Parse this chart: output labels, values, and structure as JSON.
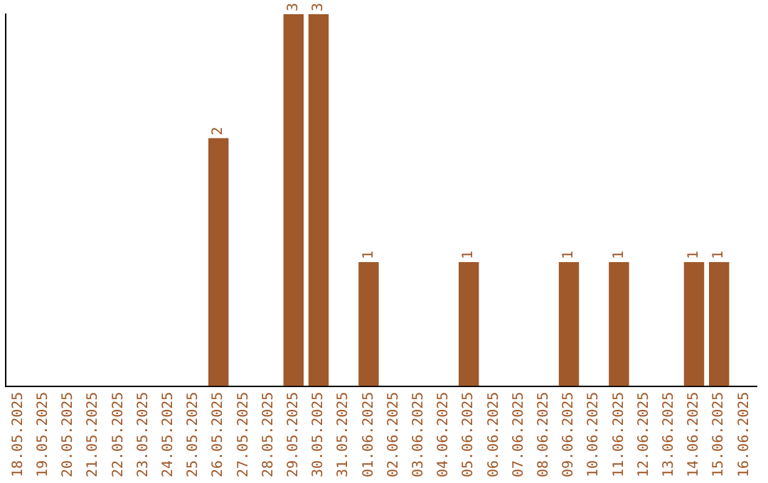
{
  "chart_data": {
    "type": "bar",
    "categories": [
      "18.05.2025",
      "19.05.2025",
      "20.05.2025",
      "21.05.2025",
      "22.05.2025",
      "23.05.2025",
      "24.05.2025",
      "25.05.2025",
      "26.05.2025",
      "27.05.2025",
      "28.05.2025",
      "29.05.2025",
      "30.05.2025",
      "31.05.2025",
      "01.06.2025",
      "02.06.2025",
      "03.06.2025",
      "04.06.2025",
      "05.06.2025",
      "06.06.2025",
      "07.06.2025",
      "08.06.2025",
      "09.06.2025",
      "10.06.2025",
      "11.06.2025",
      "12.06.2025",
      "13.06.2025",
      "14.06.2025",
      "15.06.2025",
      "16.06.2025"
    ],
    "values": [
      0,
      0,
      0,
      0,
      0,
      0,
      0,
      0,
      2,
      0,
      0,
      3,
      3,
      0,
      1,
      0,
      0,
      0,
      1,
      0,
      0,
      0,
      1,
      0,
      1,
      0,
      0,
      1,
      1,
      0
    ],
    "value_labels": [
      null,
      null,
      null,
      null,
      null,
      null,
      null,
      null,
      "2",
      null,
      null,
      "3",
      "3",
      null,
      "1",
      null,
      null,
      null,
      "1",
      null,
      null,
      null,
      "1",
      null,
      "1",
      null,
      null,
      "1",
      "1",
      null
    ],
    "color": "#a0592a",
    "grid": false,
    "legend": false,
    "tick_labels": "x"
  }
}
